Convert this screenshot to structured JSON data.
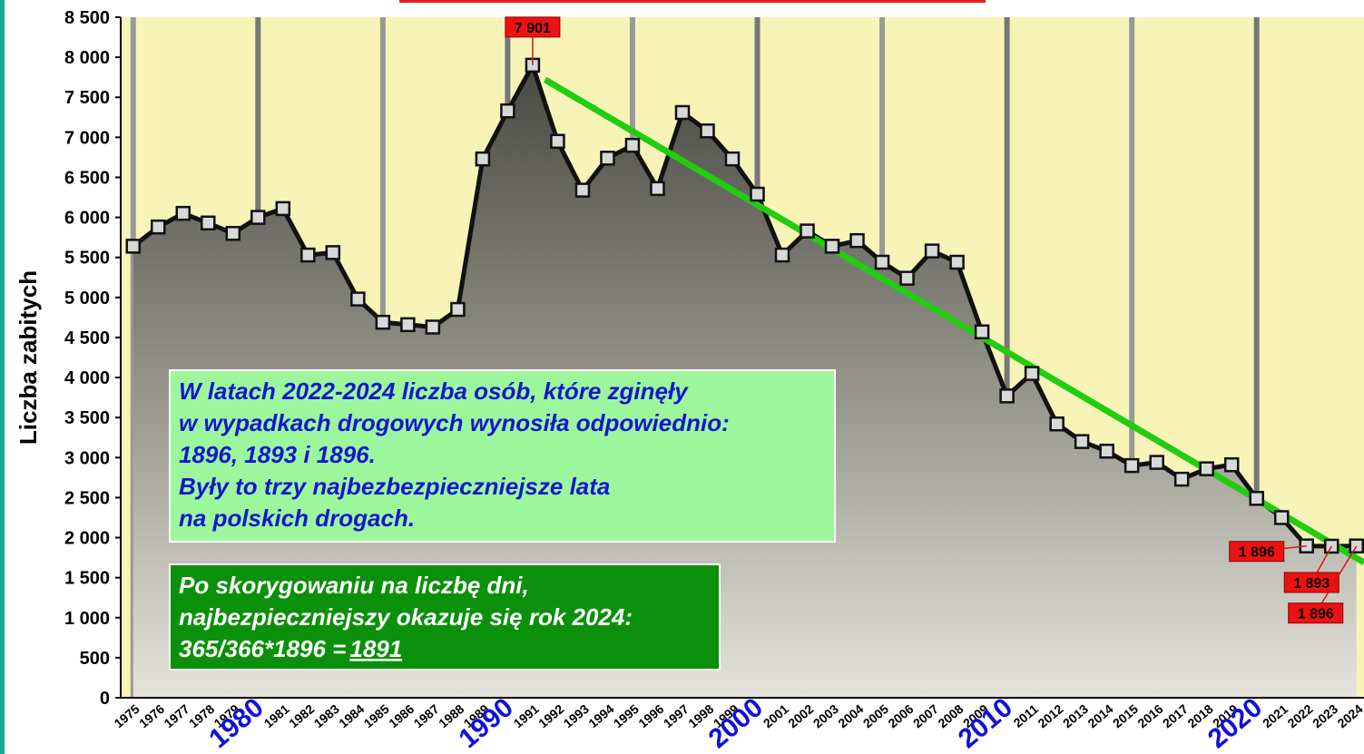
{
  "chart_data": {
    "type": "area-line",
    "y_axis_label": "Liczba zabitych",
    "x": [
      1975,
      1976,
      1977,
      1978,
      1979,
      1980,
      1981,
      1982,
      1983,
      1984,
      1985,
      1986,
      1987,
      1988,
      1989,
      1990,
      1991,
      1992,
      1993,
      1994,
      1995,
      1996,
      1997,
      1998,
      1999,
      2000,
      2001,
      2002,
      2003,
      2004,
      2005,
      2006,
      2007,
      2008,
      2009,
      2010,
      2011,
      2012,
      2013,
      2014,
      2015,
      2016,
      2017,
      2018,
      2019,
      2020,
      2021,
      2022,
      2023,
      2024
    ],
    "series": [
      {
        "color": "#111111",
        "values": [
          5640,
          5880,
          6050,
          5930,
          5800,
          6000,
          6110,
          5530,
          5560,
          4980,
          4690,
          4660,
          4630,
          4850,
          6730,
          7330,
          7901,
          6950,
          6340,
          6740,
          6900,
          6360,
          7310,
          7080,
          6730,
          6290,
          5530,
          5830,
          5640,
          5710,
          5440,
          5240,
          5580,
          5440,
          4570,
          3770,
          4050,
          3420,
          3200,
          3080,
          2900,
          2940,
          2730,
          2860,
          2910,
          2490,
          2250,
          1896,
          1893,
          1896
        ],
        "value_labels": [
          null,
          null,
          null,
          null,
          null,
          null,
          null,
          null,
          null,
          null,
          null,
          null,
          null,
          null,
          null,
          null,
          "7 901",
          null,
          null,
          null,
          null,
          null,
          null,
          null,
          null,
          null,
          null,
          null,
          null,
          null,
          null,
          null,
          null,
          null,
          null,
          null,
          null,
          null,
          null,
          null,
          null,
          null,
          null,
          null,
          null,
          null,
          null,
          "1 896",
          "1 893",
          "1 896"
        ]
      }
    ],
    "trend": {
      "color": "#22cc11",
      "x": [
        1991.5,
        2024.3
      ],
      "values": [
        7720,
        1690
      ]
    },
    "xlim": [
      1974.5,
      2024.3
    ],
    "ylim": [
      0,
      8500
    ],
    "yticks": [
      0,
      500,
      {
        "value": 1000,
        "label": "1 000"
      },
      {
        "value": 1500,
        "label": "1 500"
      },
      {
        "value": 2000,
        "label": "2 000"
      },
      {
        "value": 2500,
        "label": "2 500"
      },
      {
        "value": 3000,
        "label": "3 000"
      },
      {
        "value": 3500,
        "label": "3 500"
      },
      {
        "value": 4000,
        "label": "4 000"
      },
      {
        "value": 4500,
        "label": "4 500"
      },
      {
        "value": 5000,
        "label": "5 000"
      },
      {
        "value": 5500,
        "label": "5 500"
      },
      {
        "value": 6000,
        "label": "6 000"
      },
      {
        "value": 6500,
        "label": "6 500"
      },
      {
        "value": 7000,
        "label": "7 000"
      },
      {
        "value": 7500,
        "label": "7 500"
      },
      {
        "value": 8000,
        "label": "8 000"
      },
      {
        "value": 8500,
        "label": "8 500"
      }
    ],
    "grid": "x",
    "annotations": [
      {
        "lines": [
          "W latach 2022-2024 liczba osób, które zginęły",
          "w wypadkach drogowych wynosiła odpowiednio:",
          "1896, 1893 i 1896.",
          "Były to trzy najbezbezpieczniejsze lata",
          "na polskich drogach."
        ]
      },
      {
        "lines": [
          "Po skorygowaniu na liczbę dni,",
          "najbezpieczniejszy okazuje się rok 2024:",
          "365/366*1896 = "
        ],
        "underlined": "1891"
      }
    ]
  }
}
